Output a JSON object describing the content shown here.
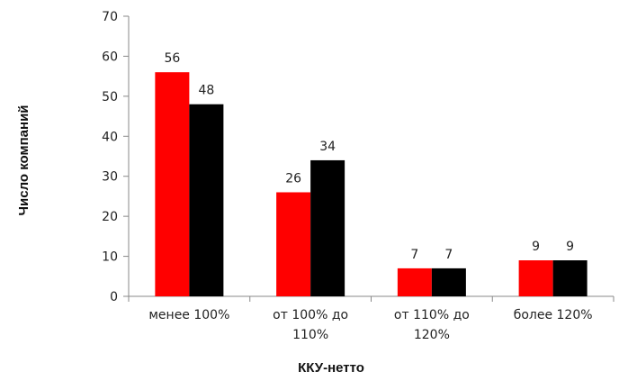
{
  "chart_data": {
    "type": "bar",
    "categories": [
      [
        "менее 100%"
      ],
      [
        "от 100% до",
        "110%"
      ],
      [
        "от 110% до",
        "120%"
      ],
      [
        "более 120%"
      ]
    ],
    "series": [
      {
        "values": [
          56,
          26,
          7,
          9
        ],
        "color": "#ff0000"
      },
      {
        "values": [
          48,
          34,
          7,
          9
        ],
        "color": "#000000"
      }
    ],
    "data_labels": true,
    "title": "",
    "xlabel": "ККУ-нетто",
    "ylabel": "Число компаний",
    "ylim": [
      0,
      70
    ],
    "yticks": [
      0,
      10,
      20,
      30,
      40,
      50,
      60,
      70
    ],
    "grid": false,
    "legend": "none"
  }
}
